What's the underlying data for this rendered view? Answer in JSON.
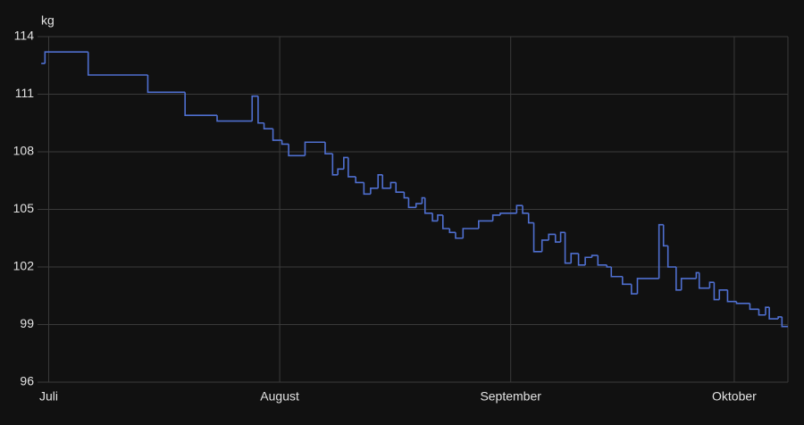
{
  "chart_data": {
    "type": "step-line",
    "y_unit_label": "kg",
    "color": "#4f6fd0",
    "step": "after",
    "grid": true,
    "x": [
      -1.0,
      -0.5,
      5.3,
      13.3,
      18.3,
      22.6,
      27.3,
      28.1,
      28.9,
      30.1,
      31.3,
      32.2,
      34.4,
      37.1,
      38.1,
      38.8,
      39.6,
      40.2,
      41.2,
      42.3,
      43.2,
      44.2,
      44.8,
      45.9,
      46.6,
      47.7,
      48.3,
      49.3,
      50.1,
      50.5,
      51.5,
      52.2,
      52.9,
      53.8,
      54.6,
      55.6,
      57.7,
      59.6,
      60.6,
      62.8,
      63.6,
      64.4,
      65.1,
      66.2,
      67.1,
      68.0,
      68.7,
      69.3,
      70.1,
      71.1,
      72.0,
      72.9,
      73.7,
      74.9,
      75.5,
      77.0,
      78.2,
      79.0,
      81.9,
      82.5,
      83.1,
      84.2,
      84.9,
      86.9,
      87.3,
      88.7,
      89.3,
      90.0,
      91.1,
      92.3,
      94.1,
      95.3,
      96.2,
      96.7,
      97.9,
      98.4
    ],
    "values": [
      112.6,
      113.2,
      112.0,
      111.1,
      109.9,
      109.6,
      110.9,
      109.5,
      109.2,
      108.6,
      108.4,
      107.8,
      108.5,
      107.9,
      106.8,
      107.1,
      107.7,
      106.7,
      106.4,
      105.8,
      106.1,
      106.8,
      106.1,
      106.4,
      105.9,
      105.6,
      105.1,
      105.3,
      105.6,
      104.8,
      104.4,
      104.7,
      104.0,
      103.8,
      103.5,
      104.0,
      104.4,
      104.7,
      104.8,
      105.2,
      104.8,
      104.3,
      102.8,
      103.4,
      103.7,
      103.3,
      103.8,
      102.2,
      102.7,
      102.1,
      102.5,
      102.6,
      102.1,
      102.0,
      101.5,
      101.1,
      100.6,
      101.4,
      104.2,
      103.1,
      102.0,
      100.8,
      101.4,
      101.7,
      100.9,
      101.2,
      100.3,
      100.8,
      100.2,
      100.1,
      99.8,
      99.5,
      99.9,
      99.3,
      99.4,
      98.9
    ],
    "xlim": [
      -1.5,
      99.2
    ],
    "xticks": [
      {
        "value": 0,
        "label": "Juli"
      },
      {
        "value": 31,
        "label": "August"
      },
      {
        "value": 62,
        "label": "September"
      },
      {
        "value": 92,
        "label": "Oktober"
      }
    ],
    "ylim": [
      96,
      114
    ],
    "yticks": [
      96,
      99,
      102,
      105,
      108,
      111,
      114
    ]
  }
}
